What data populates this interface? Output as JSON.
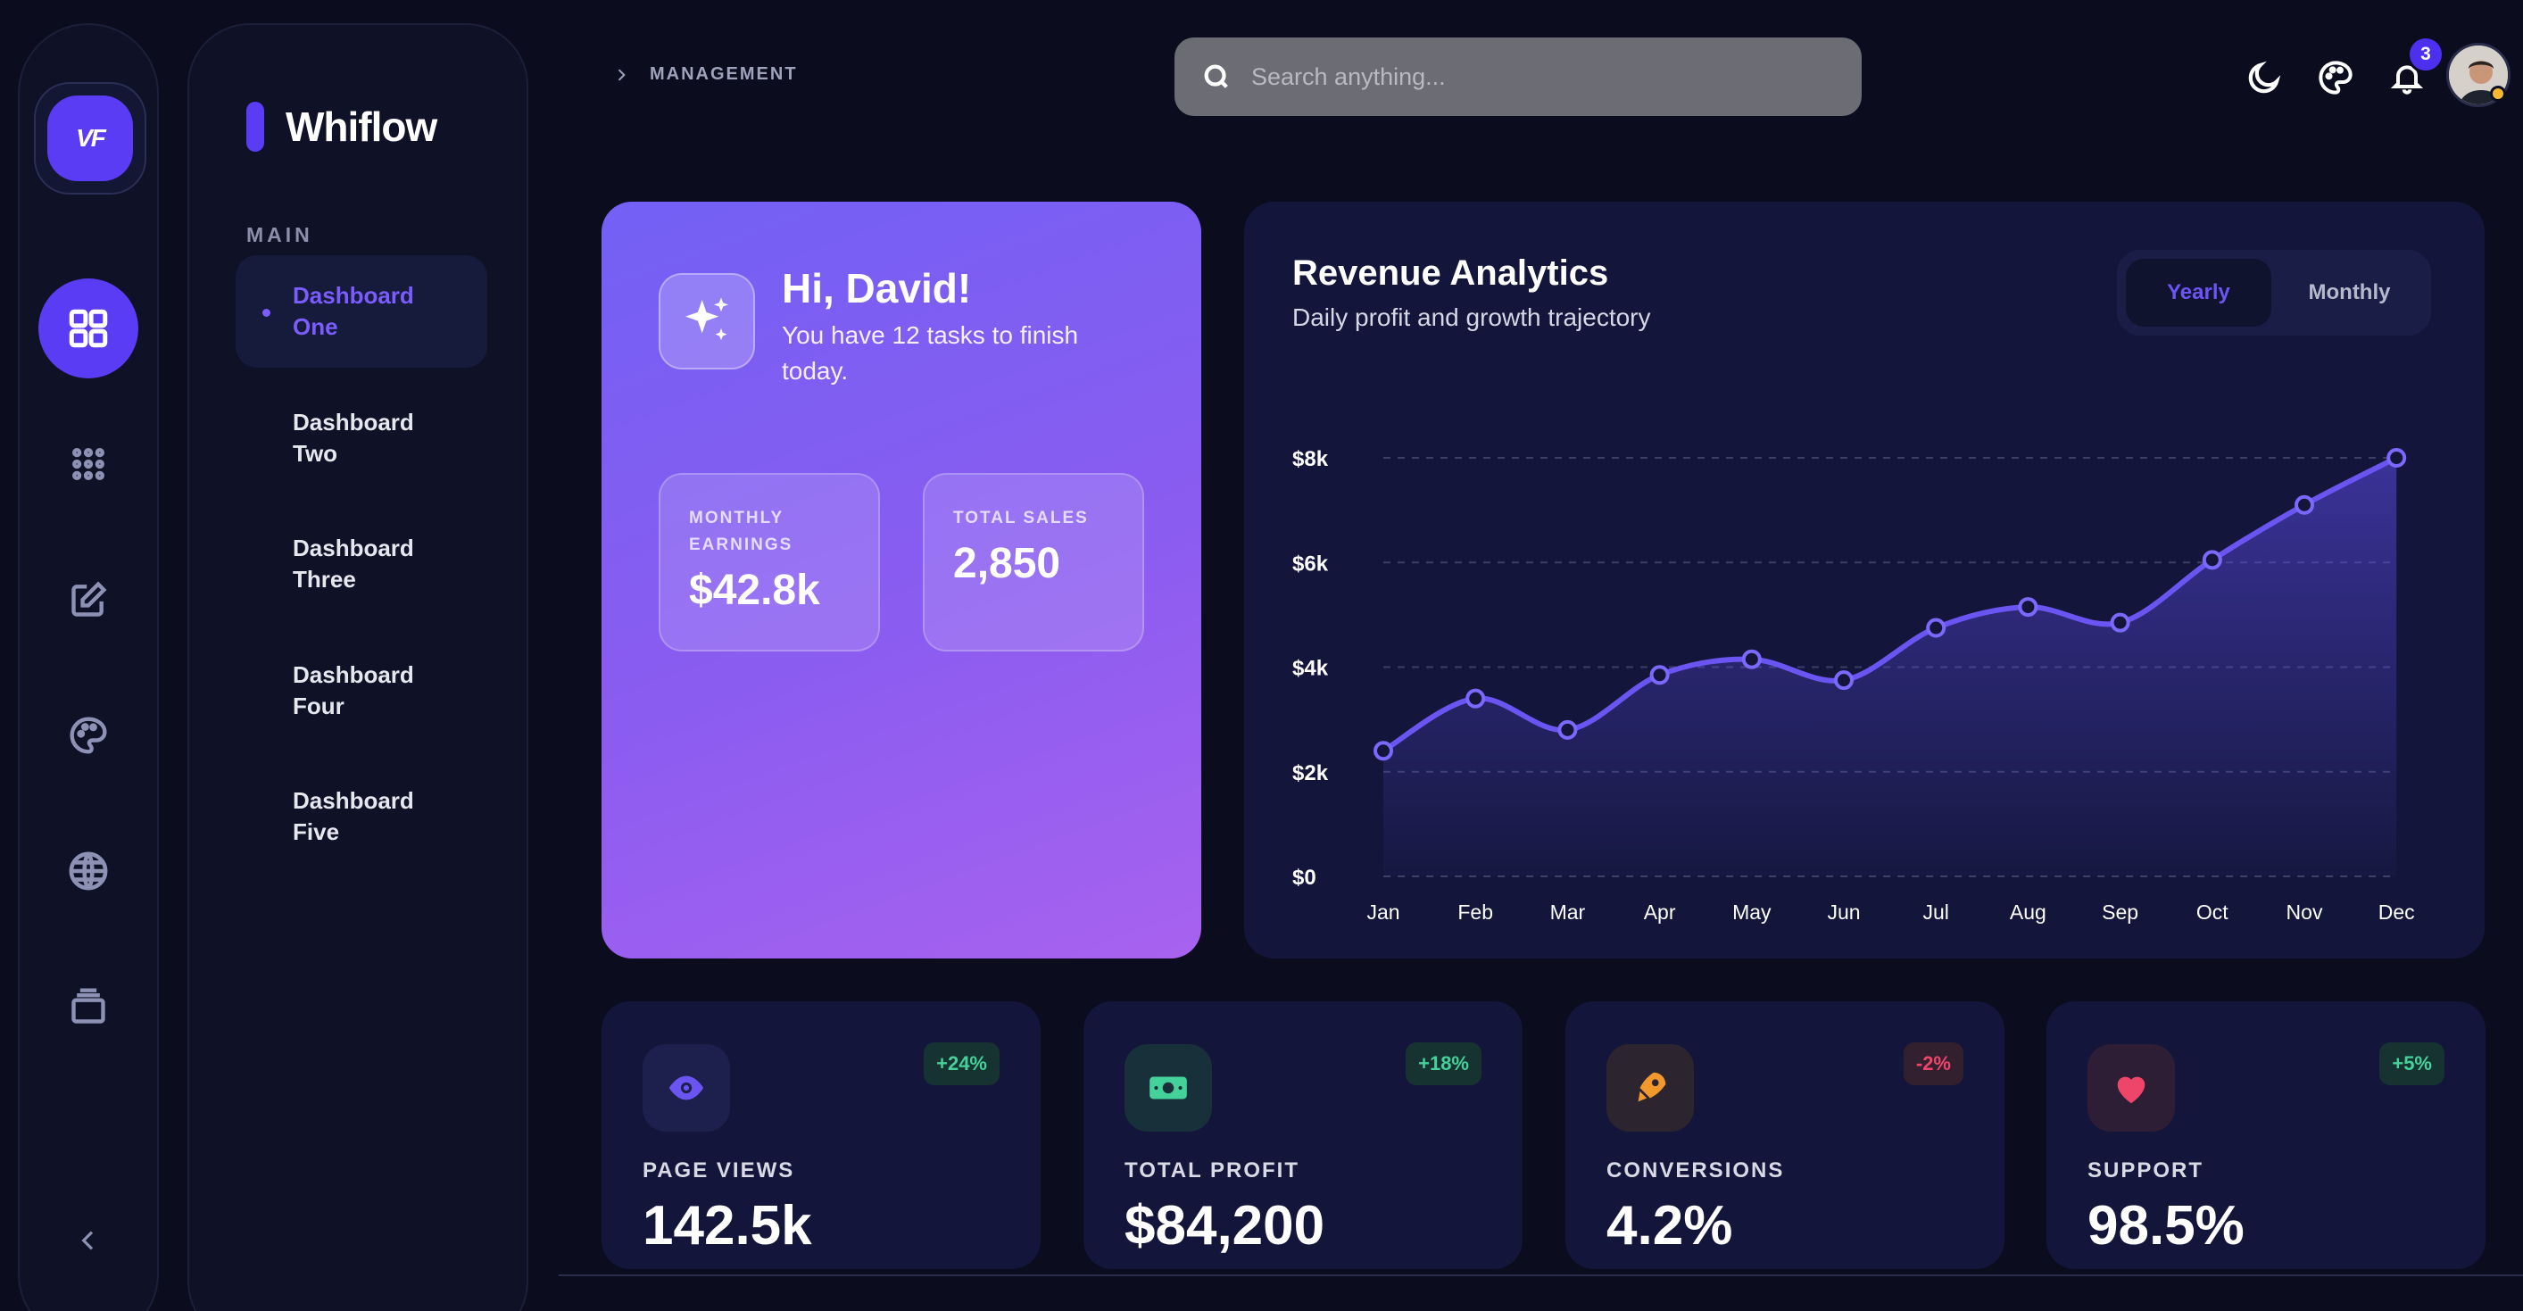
{
  "brand": {
    "logo_text": "VF",
    "name": "Whiflow"
  },
  "rail": {
    "icons": [
      "dashboard-grid-icon",
      "apps-icon",
      "edit-icon",
      "palette-icon",
      "globe-icon",
      "layers-icon",
      "collapse-chevron-icon"
    ]
  },
  "nav": {
    "section": "MAIN",
    "items": [
      {
        "label": "Dashboard One",
        "active": true
      },
      {
        "label": "Dashboard Two",
        "active": false
      },
      {
        "label": "Dashboard Three",
        "active": false
      },
      {
        "label": "Dashboard Four",
        "active": false
      },
      {
        "label": "Dashboard Five",
        "active": false
      }
    ]
  },
  "topbar": {
    "breadcrumb": "MANAGEMENT",
    "search_placeholder": "Search anything...",
    "notification_count": "3"
  },
  "welcome": {
    "title": "Hi, David!",
    "subtitle": "You have 12 tasks to finish today.",
    "metrics": [
      {
        "label": "MONTHLY EARNINGS",
        "value": "$42.8k"
      },
      {
        "label": "TOTAL SALES",
        "value": "2,850"
      }
    ]
  },
  "revenue": {
    "title": "Revenue Analytics",
    "subtitle": "Daily profit and growth trajectory",
    "toggle": {
      "yearly": "Yearly",
      "monthly": "Monthly",
      "selected": "Yearly"
    }
  },
  "chart_data": {
    "type": "area",
    "title": "Revenue Analytics",
    "categories": [
      "Jan",
      "Feb",
      "Mar",
      "Apr",
      "May",
      "Jun",
      "Jul",
      "Aug",
      "Sep",
      "Oct",
      "Nov",
      "Dec"
    ],
    "series": [
      {
        "name": "Revenue",
        "values": [
          2400,
          3400,
          2800,
          3850,
          4150,
          3750,
          4750,
          5150,
          4850,
          6050,
          7100,
          8000
        ]
      }
    ],
    "y_ticks": [
      "$0",
      "$2k",
      "$4k",
      "$6k",
      "$8k"
    ],
    "y_tick_values": [
      0,
      2000,
      4000,
      6000,
      8000
    ],
    "ylim": [
      0,
      8000
    ],
    "grid": true,
    "color": "#6a55f2"
  },
  "stats": [
    {
      "label": "PAGE VIEWS",
      "value": "142.5k",
      "change": "+24%",
      "trend": "up",
      "icon": "eye-icon",
      "color": "#6a55f2"
    },
    {
      "label": "TOTAL PROFIT",
      "value": "$84,200",
      "change": "+18%",
      "trend": "up",
      "icon": "money-icon",
      "color": "#45d19a"
    },
    {
      "label": "CONVERSIONS",
      "value": "4.2%",
      "change": "-2%",
      "trend": "down",
      "icon": "rocket-icon",
      "color": "#f2982c"
    },
    {
      "label": "SUPPORT",
      "value": "98.5%",
      "change": "+5%",
      "trend": "up",
      "icon": "heart-icon",
      "color": "#f0456b"
    }
  ]
}
